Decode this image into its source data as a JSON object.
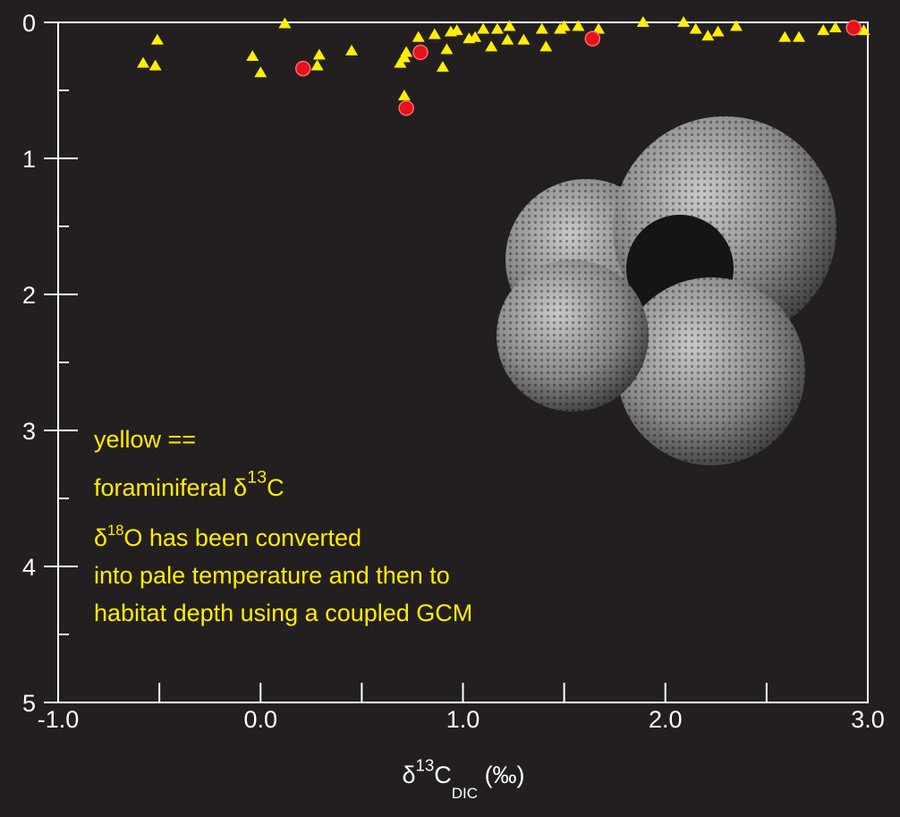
{
  "chart_data": {
    "type": "scatter",
    "xlabel": [
      {
        "text": "δ",
        "script": "base"
      },
      {
        "text": "13",
        "script": "super"
      },
      {
        "text": "C",
        "script": "base"
      },
      {
        "text": "DIC",
        "script": "sub"
      },
      {
        "text": " (‰)",
        "script": "base"
      }
    ],
    "xlim": [
      -1.0,
      3.0
    ],
    "xticks": [
      {
        "value": -1.0,
        "label": "-1.0"
      },
      {
        "value": 0.0,
        "label": "0.0"
      },
      {
        "value": 1.0,
        "label": "1.0"
      },
      {
        "value": 2.0,
        "label": "2.0"
      },
      {
        "value": 3.0,
        "label": "3.0"
      }
    ],
    "xminorticks": [
      -0.5,
      0.5,
      1.5,
      2.5
    ],
    "ylim": [
      5,
      0
    ],
    "yticks": [
      0,
      1,
      2,
      3,
      4,
      5
    ],
    "yminorticks": [
      0.5,
      1.5,
      2.5,
      3.5,
      4.5
    ],
    "series": [
      {
        "color": "#ffee00",
        "marker": "triangle",
        "x": [
          -0.58,
          -0.51,
          -0.52,
          -0.04,
          0.0,
          0.12,
          0.28,
          0.29,
          0.45,
          0.69,
          0.71,
          0.72,
          0.71,
          0.78,
          0.86,
          0.9,
          0.92,
          0.94,
          0.97,
          1.03,
          1.06,
          1.1,
          1.14,
          1.17,
          1.22,
          1.23,
          1.3,
          1.39,
          1.41,
          1.48,
          1.5,
          1.57,
          1.67,
          1.89,
          2.09,
          2.15,
          2.21,
          2.26,
          2.35,
          2.59,
          2.66,
          2.78,
          2.84,
          2.98
        ],
        "y": [
          0.3,
          0.13,
          0.32,
          0.25,
          0.37,
          0.01,
          0.32,
          0.24,
          0.21,
          0.3,
          0.26,
          0.22,
          0.54,
          0.11,
          0.09,
          0.33,
          0.2,
          0.07,
          0.06,
          0.12,
          0.11,
          0.05,
          0.18,
          0.05,
          0.13,
          0.03,
          0.13,
          0.05,
          0.18,
          0.05,
          0.03,
          0.03,
          0.05,
          0.0,
          0.0,
          0.05,
          0.1,
          0.07,
          0.03,
          0.11,
          0.11,
          0.06,
          0.04,
          0.06
        ]
      },
      {
        "color": "#e8101a",
        "marker": "circle",
        "x": [
          0.21,
          0.79,
          0.72,
          1.64,
          2.93
        ],
        "y": [
          0.34,
          0.22,
          0.63,
          0.12,
          0.04
        ]
      }
    ],
    "annotations": [
      {
        "size": "large",
        "parts": [
          {
            "text": "yellow ==",
            "script": "base"
          }
        ]
      },
      {
        "size": "large",
        "parts": [
          {
            "text": "foraminiferal δ",
            "script": "base"
          },
          {
            "text": "13",
            "script": "super"
          },
          {
            "text": "C",
            "script": "base"
          }
        ]
      },
      {
        "size": "small",
        "parts": [
          {
            "text": "δ",
            "script": "base"
          },
          {
            "text": "18",
            "script": "super"
          },
          {
            "text": "O has been converted",
            "script": "base"
          }
        ]
      },
      {
        "size": "small",
        "parts": [
          {
            "text": "into pale temperature and then to",
            "script": "base"
          }
        ]
      },
      {
        "size": "small",
        "parts": [
          {
            "text": "habitat depth using a coupled GCM",
            "script": "base"
          }
        ]
      }
    ],
    "annotation_color": "#ffee00"
  }
}
